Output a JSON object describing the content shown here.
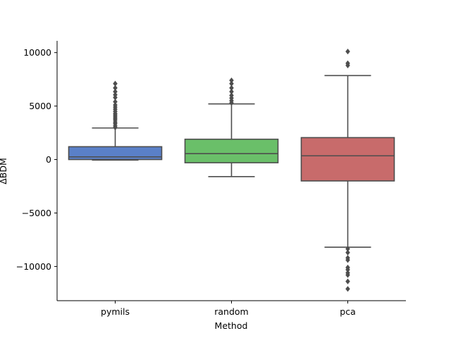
{
  "chart_data": {
    "type": "box",
    "title": "",
    "xlabel": "Method",
    "ylabel": "ΔBDM",
    "ylim": [
      -13200,
      11100
    ],
    "yticks": [
      -10000,
      -5000,
      0,
      5000,
      10000
    ],
    "ytick_labels": [
      "−10000",
      "−5000",
      "0",
      "5000",
      "10000"
    ],
    "grid": false,
    "categories": [
      "pymils",
      "random",
      "pca"
    ],
    "colors": [
      "#5a80c8",
      "#6abf69",
      "#c86b6b"
    ],
    "boxes": [
      {
        "category": "pymils",
        "whisker_low": -50,
        "q1": 0,
        "median": 250,
        "q3": 1200,
        "whisker_high": 2950,
        "outliers": [
          3000,
          3150,
          3350,
          3500,
          3700,
          3850,
          4000,
          4150,
          4300,
          4500,
          4700,
          4900,
          5100,
          5400,
          5800,
          6050,
          6350,
          6700,
          7100
        ]
      },
      {
        "category": "random",
        "whisker_low": -1600,
        "q1": -300,
        "median": 550,
        "q3": 1900,
        "whisker_high": 5200,
        "outliers": [
          5300,
          5500,
          5750,
          6000,
          6350,
          6700,
          7100,
          7400
        ]
      },
      {
        "category": "pca",
        "whisker_low": -8200,
        "q1": -2000,
        "median": 350,
        "q3": 2050,
        "whisker_high": 7850,
        "outliers": [
          8800,
          9000,
          10100,
          -8350,
          -8700,
          -9200,
          -9400,
          -10100,
          -10300,
          -10600,
          -10800,
          -11400,
          -12100
        ]
      }
    ]
  }
}
